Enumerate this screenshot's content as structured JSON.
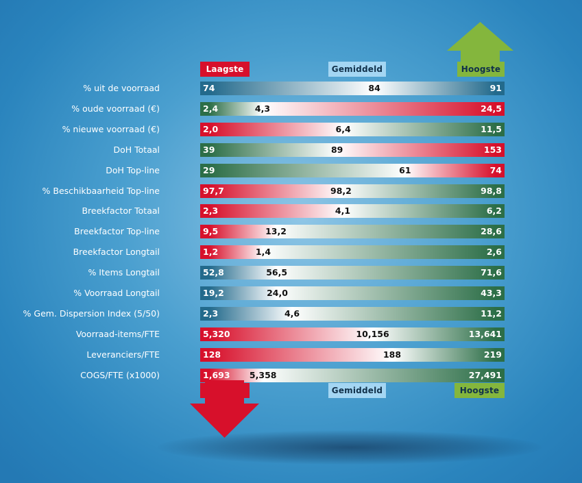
{
  "legend": {
    "low": "Laagste",
    "avg": "Gemiddeld",
    "high": "Hoogste"
  },
  "colors": {
    "red": "#d7102b",
    "green": "#2c6e47",
    "blue": "#236a8c",
    "white": "#ffffff",
    "legend_avg": "#a4d6f3",
    "legend_high": "#84b63d"
  },
  "chart_data": {
    "type": "table",
    "columns": [
      "Laagste",
      "Gemiddeld",
      "Hoogste"
    ],
    "rows": [
      {
        "label": "% uit de voorraad",
        "low": "74",
        "avg": "84",
        "high": "91",
        "low_color": "blue",
        "high_color": "blue"
      },
      {
        "label": "% oude voorraad (€)",
        "low": "2,4",
        "avg": "4,3",
        "high": "24,5",
        "low_color": "green",
        "high_color": "red"
      },
      {
        "label": "% nieuwe voorraad (€)",
        "low": "2,0",
        "avg": "6,4",
        "high": "11,5",
        "low_color": "red",
        "high_color": "green"
      },
      {
        "label": "DoH Totaal",
        "low": "39",
        "avg": "89",
        "high": "153",
        "low_color": "green",
        "high_color": "red"
      },
      {
        "label": "DoH Top-line",
        "low": "29",
        "avg": "61",
        "high": "74",
        "low_color": "green",
        "high_color": "red"
      },
      {
        "label": "% Beschikbaarheid Top-line",
        "low": "97,7",
        "avg": "98,2",
        "high": "98,8",
        "low_color": "red",
        "high_color": "green"
      },
      {
        "label": "Breekfactor Totaal",
        "low": "2,3",
        "avg": "4,1",
        "high": "6,2",
        "low_color": "red",
        "high_color": "green"
      },
      {
        "label": "Breekfactor Top-line",
        "low": "9,5",
        "avg": "13,2",
        "high": "28,6",
        "low_color": "red",
        "high_color": "green"
      },
      {
        "label": "Breekfactor Longtail",
        "low": "1,2",
        "avg": "1,4",
        "high": "2,6",
        "low_color": "red",
        "high_color": "green"
      },
      {
        "label": "% Items Longtail",
        "low": "52,8",
        "avg": "56,5",
        "high": "71,6",
        "low_color": "blue",
        "high_color": "green"
      },
      {
        "label": "% Voorraad Longtail",
        "low": "19,2",
        "avg": "24,0",
        "high": "43,3",
        "low_color": "blue",
        "high_color": "green"
      },
      {
        "label": "% Gem. Dispersion Index (5/50)",
        "low": "2,3",
        "avg": "4,6",
        "high": "11,2",
        "low_color": "blue",
        "high_color": "green"
      },
      {
        "label": "Voorraad-items/FTE",
        "low": "5,320",
        "avg": "10,156",
        "high": "13,641",
        "low_color": "red",
        "high_color": "green"
      },
      {
        "label": "Leveranciers/FTE",
        "low": "128",
        "avg": "188",
        "high": "219",
        "low_color": "red",
        "high_color": "green"
      },
      {
        "label": "COGS/FTE (x1000)",
        "low": "1,693",
        "avg": "5,358",
        "high": "27,491",
        "low_color": "red",
        "high_color": "green"
      }
    ]
  }
}
